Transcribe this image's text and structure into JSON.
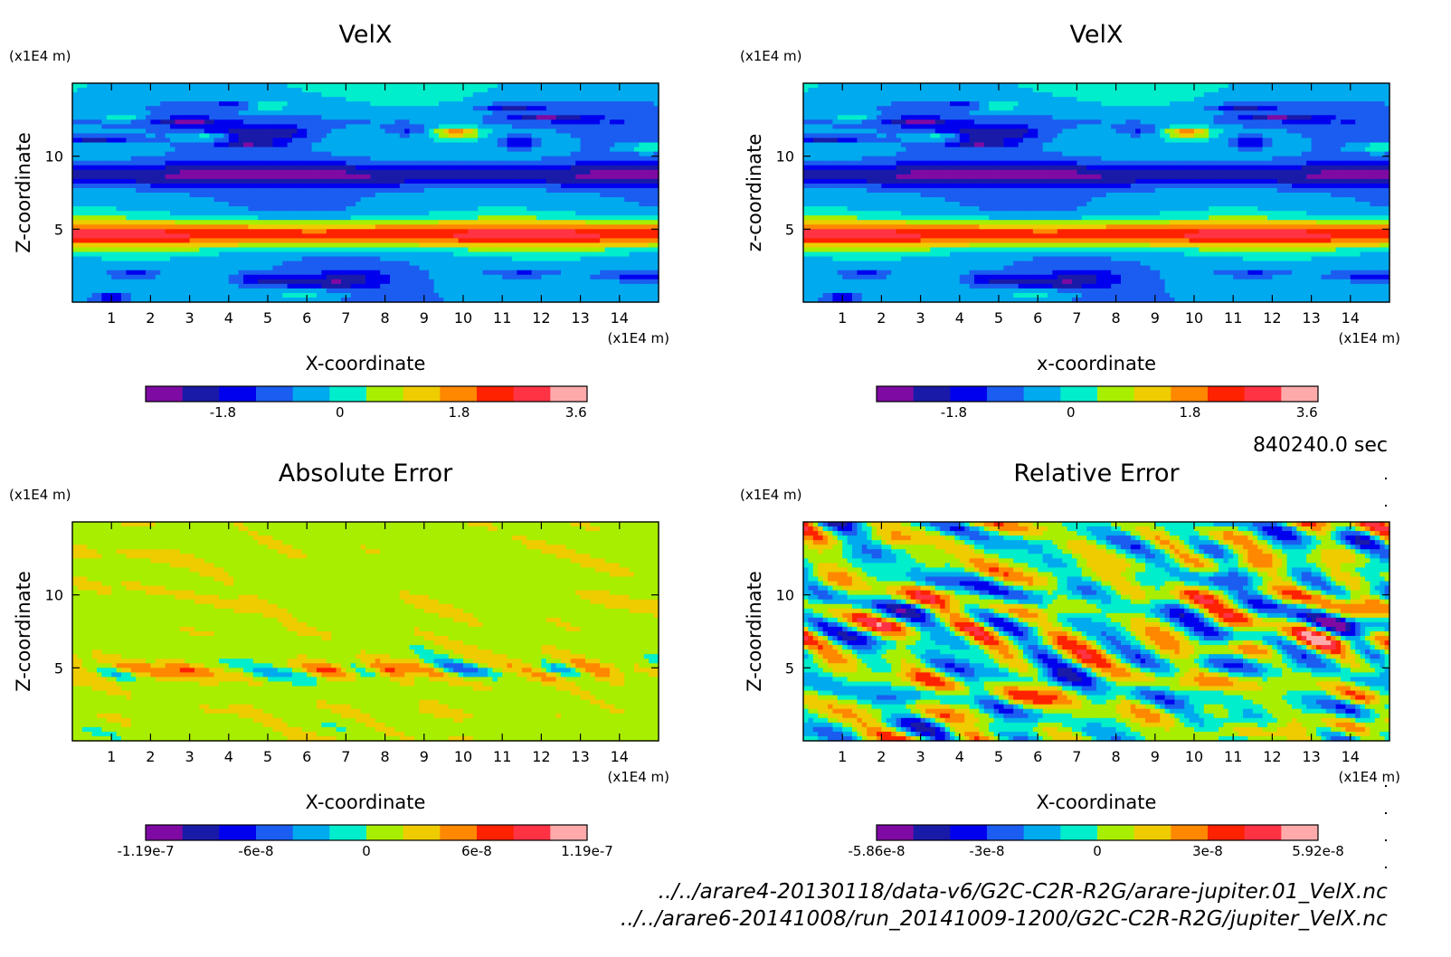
{
  "time_label": "840240.0 sec",
  "footer": {
    "file1": "../../arare4-20130118/data-v6/G2C-C2R-R2G/arare-jupiter.01_VelX.nc",
    "file2": "../../arare6-20141008/run_20141009-1200/G2C-C2R-R2G/jupiter_VelX.nc"
  },
  "palette": [
    "#7f0aa3",
    "#1a1aa8",
    "#0000ee",
    "#1b5df0",
    "#00aaee",
    "#00eecc",
    "#a8ee00",
    "#eecc00",
    "#ff8800",
    "#ff2200",
    "#ff3344",
    "#ffaaaa"
  ],
  "chart_data": [
    {
      "type": "heatmap",
      "title": "VelX",
      "xlabel": "X-coordinate",
      "ylabel": "Z-coordinate",
      "x_unit": "(x1E4 m)",
      "y_unit": "(x1E4 m)",
      "xlim": [
        0,
        15
      ],
      "ylim": [
        0,
        15
      ],
      "x_ticks": [
        "1",
        "2",
        "3",
        "4",
        "5",
        "6",
        "7",
        "8",
        "9",
        "10",
        "11",
        "12",
        "13",
        "14"
      ],
      "y_ticks": [
        "5",
        "10"
      ],
      "colorbar_ticks": [
        "-1.8",
        "0",
        "1.8",
        "3.6"
      ],
      "pattern": "jet",
      "seed": 11
    },
    {
      "type": "heatmap",
      "title": "VelX",
      "xlabel": "x-coordinate",
      "ylabel": "z-coordinate",
      "x_unit": "(x1E4 m)",
      "y_unit": "(x1E4 m)",
      "xlim": [
        0,
        15
      ],
      "ylim": [
        0,
        15
      ],
      "x_ticks": [
        "1",
        "2",
        "3",
        "4",
        "5",
        "6",
        "7",
        "8",
        "9",
        "10",
        "11",
        "12",
        "13",
        "14"
      ],
      "y_ticks": [
        "5",
        "10"
      ],
      "colorbar_ticks": [
        "-1.8",
        "0",
        "1.8",
        "3.6"
      ],
      "pattern": "jet",
      "seed": 11
    },
    {
      "type": "heatmap",
      "title": "Absolute Error",
      "xlabel": "X-coordinate",
      "ylabel": "Z-coordinate",
      "x_unit": "(x1E4 m)",
      "y_unit": "(x1E4 m)",
      "xlim": [
        0,
        15
      ],
      "ylim": [
        0,
        15
      ],
      "x_ticks": [
        "1",
        "2",
        "3",
        "4",
        "5",
        "6",
        "7",
        "8",
        "9",
        "10",
        "11",
        "12",
        "13",
        "14"
      ],
      "y_ticks": [
        "5",
        "10"
      ],
      "colorbar_ticks": [
        "-1.19e-7",
        "-6e-8",
        "0",
        "6e-8",
        "1.19e-7"
      ],
      "pattern": "abs_error",
      "seed": 23
    },
    {
      "type": "heatmap",
      "title": "Relative Error",
      "xlabel": "X-coordinate",
      "ylabel": "Z-coordinate",
      "x_unit": "(x1E4 m)",
      "y_unit": "(x1E4 m)",
      "xlim": [
        0,
        15
      ],
      "ylim": [
        0,
        15
      ],
      "x_ticks": [
        "1",
        "2",
        "3",
        "4",
        "5",
        "6",
        "7",
        "8",
        "9",
        "10",
        "11",
        "12",
        "13",
        "14"
      ],
      "y_ticks": [
        "5",
        "10"
      ],
      "colorbar_ticks": [
        "-5.86e-8",
        "-3e-8",
        "0",
        "3e-8",
        "5.92e-8"
      ],
      "pattern": "rel_error",
      "seed": 37
    }
  ]
}
